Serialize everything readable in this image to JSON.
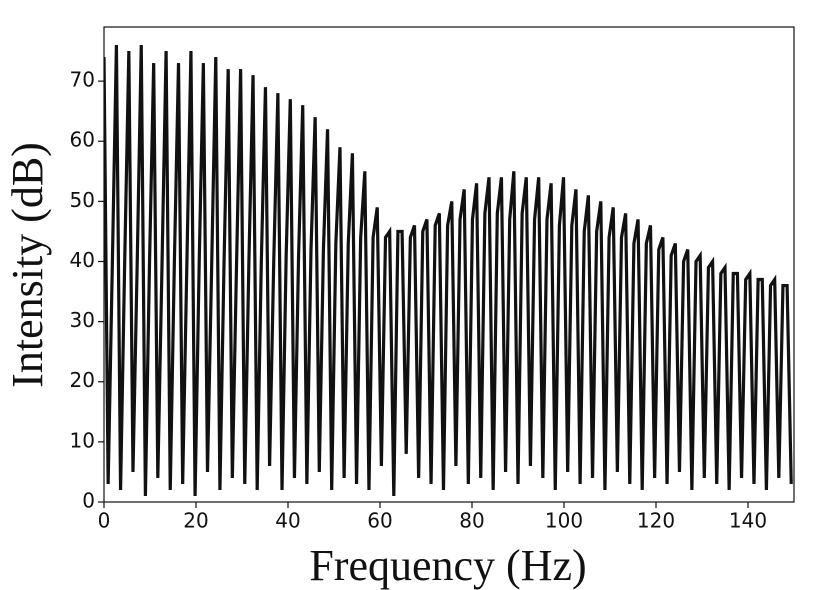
{
  "chart_data": {
    "type": "line",
    "x_label": "Frequency (Hz)",
    "y_label": "Intensity (dB)",
    "xlim": [
      0,
      150
    ],
    "ylim": [
      0,
      79
    ],
    "xticks": [
      0,
      20,
      40,
      60,
      80,
      100,
      120,
      140
    ],
    "yticks": [
      0,
      10,
      20,
      30,
      40,
      50,
      60,
      70
    ],
    "color": "#111111",
    "x": [
      0,
      0.9,
      1.8,
      2.7,
      3.6,
      4.5,
      5.4,
      6.3,
      7.2,
      8.1,
      9,
      9.9,
      10.8,
      11.7,
      12.6,
      13.5,
      14.4,
      15.3,
      16.2,
      17.1,
      18,
      18.9,
      19.8,
      20.7,
      21.6,
      22.5,
      23.4,
      24.3,
      25.2,
      26.1,
      27,
      27.9,
      28.8,
      29.7,
      30.6,
      31.5,
      32.4,
      33.3,
      34.2,
      35.1,
      36,
      36.9,
      37.8,
      38.7,
      39.6,
      40.5,
      41.4,
      42.3,
      43.2,
      44.1,
      45,
      45.9,
      46.8,
      47.7,
      48.6,
      49.5,
      50.4,
      51.3,
      52.2,
      53.1,
      54,
      54.9,
      55.8,
      56.7,
      57.6,
      58.5,
      59.4,
      60.3,
      61.2,
      62.1,
      63,
      63.9,
      64.8,
      65.7,
      66.6,
      67.5,
      68.4,
      69.3,
      70.2,
      71.1,
      72,
      72.9,
      73.8,
      74.7,
      75.6,
      76.5,
      77.4,
      78.3,
      79.2,
      80.1,
      81,
      81.9,
      82.8,
      83.7,
      84.6,
      85.5,
      86.4,
      87.3,
      88.2,
      89.1,
      90,
      90.9,
      91.8,
      92.7,
      93.6,
      94.5,
      95.4,
      96.3,
      97.2,
      98.1,
      99,
      99.9,
      100.8,
      101.7,
      102.6,
      103.5,
      104.4,
      105.3,
      106.2,
      107.1,
      108,
      108.9,
      109.8,
      110.7,
      111.6,
      112.5,
      113.4,
      114.3,
      115.2,
      116.1,
      117,
      117.9,
      118.8,
      119.7,
      120.6,
      121.5,
      122.4,
      123.3,
      124.2,
      125.1,
      126,
      126.9,
      127.8,
      128.7,
      129.6,
      130.5,
      131.4,
      132.3,
      133.2,
      134.1,
      135,
      135.9,
      136.8,
      137.7,
      138.6,
      139.5,
      140.4,
      141.3,
      142.2,
      143.1,
      144,
      144.9,
      145.8,
      146.7,
      147.6,
      148.5,
      149.4
    ],
    "values": [
      74,
      3,
      39,
      76,
      2,
      40,
      75,
      5,
      39,
      76,
      1,
      40,
      73,
      4,
      39,
      75,
      2,
      40,
      73,
      3,
      39,
      75,
      1,
      40,
      73,
      5,
      39,
      74,
      2,
      40,
      72,
      4,
      39,
      72,
      3,
      40,
      71,
      2,
      40,
      69,
      6,
      40,
      68,
      2,
      41,
      67,
      4,
      41,
      66,
      3,
      42,
      64,
      5,
      42,
      62,
      2,
      43,
      59,
      4,
      43,
      58,
      3,
      44,
      55,
      2,
      44,
      49,
      6,
      44,
      45,
      1,
      45,
      45,
      8,
      44,
      46,
      4,
      45,
      47,
      3,
      46,
      48,
      2,
      46,
      50,
      6,
      47,
      52,
      3,
      47,
      53,
      4,
      48,
      54,
      2,
      48,
      54,
      5,
      47,
      55,
      3,
      48,
      54,
      6,
      47,
      54,
      4,
      47,
      53,
      2,
      46,
      54,
      5,
      46,
      52,
      3,
      45,
      51,
      4,
      45,
      50,
      2,
      44,
      49,
      5,
      44,
      48,
      3,
      43,
      47,
      2,
      43,
      46,
      4,
      42,
      44,
      3,
      41,
      43,
      5,
      40,
      42,
      2,
      40,
      41,
      4,
      39,
      40,
      3,
      38,
      39,
      2,
      38,
      38,
      4,
      37,
      38,
      3,
      37,
      37,
      2,
      36,
      37,
      4,
      36,
      36,
      3
    ]
  }
}
